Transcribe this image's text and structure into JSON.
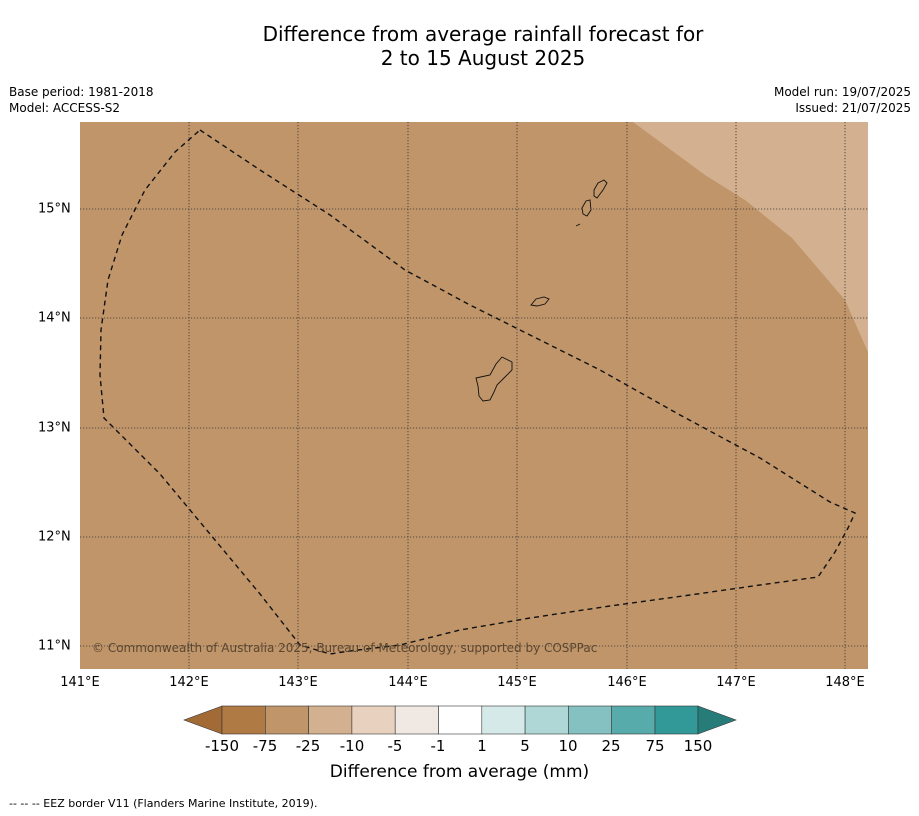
{
  "title_line1": "Difference from average rainfall forecast for",
  "title_line2": "2 to 15 August 2025",
  "meta": {
    "base_period": "Base period: 1981-2018",
    "model": "Model: ACCESS-S2",
    "model_run": "Model run: 19/07/2025",
    "issued": "Issued: 21/07/2025"
  },
  "map": {
    "latitudes": [
      {
        "label": "15°N"
      },
      {
        "label": "14°N"
      },
      {
        "label": "13°N"
      },
      {
        "label": "12°N"
      },
      {
        "label": "11°N"
      }
    ],
    "longitudes": [
      {
        "label": "141°E"
      },
      {
        "label": "142°E"
      },
      {
        "label": "143°E"
      },
      {
        "label": "144°E"
      },
      {
        "label": "145°E"
      },
      {
        "label": "146°E"
      },
      {
        "label": "147°E"
      },
      {
        "label": "148°E"
      }
    ],
    "copyright": "© Commonwealth of Australia 2025, Bureau of Meteorology, supported by COSPPac",
    "fill_categories": [
      "-75 to -25",
      "-25 to -10"
    ]
  },
  "colorbar": {
    "label": "Difference from average (mm)",
    "ticks": [
      "-150",
      "-75",
      "-25",
      "-10",
      "-5",
      "-1",
      "1",
      "5",
      "10",
      "25",
      "75",
      "150"
    ],
    "colors": [
      "#a26a37",
      "#b07a44",
      "#c0956a",
      "#d3b08f",
      "#e8d2bf",
      "#efe8e3",
      "#ffffff",
      "#d5eae8",
      "#aed7d5",
      "#85c1c1",
      "#58abab",
      "#339898",
      "#277c7a"
    ]
  },
  "footnote": "--  --  -- EEZ border V11 (Flanders Marine Institute, 2019)."
}
